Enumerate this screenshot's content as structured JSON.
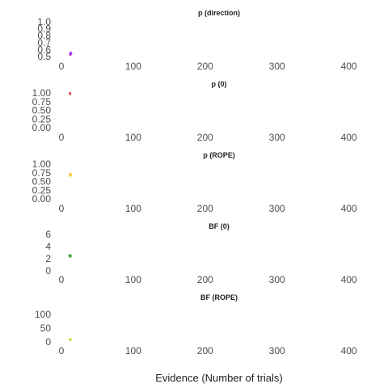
{
  "chart_data": [
    {
      "type": "scatter",
      "title": "p (direction)",
      "xlim": [
        0,
        450
      ],
      "ylim": [
        0.5,
        1.0
      ],
      "x_ticks": [
        "0",
        "100",
        "200",
        "300",
        "400"
      ],
      "y_ticks": [
        "1.0",
        "0.9",
        "0.8",
        "0.7",
        "0.6",
        "0.5"
      ],
      "color": "#a020f0",
      "points": [
        {
          "x": 12,
          "y": 0.54
        },
        {
          "x": 12,
          "y": 0.55
        },
        {
          "x": 13,
          "y": 0.53
        },
        {
          "x": 14,
          "y": 0.545
        },
        {
          "x": 12,
          "y": 0.52
        },
        {
          "x": 13,
          "y": 0.56
        }
      ]
    },
    {
      "type": "scatter",
      "title": "p (0)",
      "xlim": [
        0,
        450
      ],
      "ylim": [
        0,
        1.0
      ],
      "x_ticks": [
        "0",
        "100",
        "200",
        "300",
        "400"
      ],
      "y_ticks": [
        "1.00",
        "0.75",
        "0.50",
        "0.25",
        "0.00"
      ],
      "color": "#e8253a",
      "points": [
        {
          "x": 12,
          "y": 1.0
        },
        {
          "x": 12,
          "y": 0.99
        },
        {
          "x": 12,
          "y": 0.98
        },
        {
          "x": 12,
          "y": 0.97
        },
        {
          "x": 12,
          "y": 0.96
        }
      ]
    },
    {
      "type": "scatter",
      "title": "p (ROPE)",
      "xlim": [
        0,
        450
      ],
      "ylim": [
        0,
        1.0
      ],
      "x_ticks": [
        "0",
        "100",
        "200",
        "300",
        "400"
      ],
      "y_ticks": [
        "1.00",
        "0.75",
        "0.50",
        "0.25",
        "0.00"
      ],
      "color": "#f0c000",
      "points": [
        {
          "x": 12,
          "y": 0.72
        },
        {
          "x": 12,
          "y": 0.7
        },
        {
          "x": 13,
          "y": 0.68
        },
        {
          "x": 12,
          "y": 0.66
        },
        {
          "x": 13,
          "y": 0.71
        }
      ]
    },
    {
      "type": "scatter",
      "title": "BF (0)",
      "xlim": [
        0,
        450
      ],
      "ylim": [
        0,
        6
      ],
      "x_ticks": [
        "0",
        "100",
        "200",
        "300",
        "400"
      ],
      "y_ticks": [
        "6",
        "4",
        "2",
        "0"
      ],
      "color": "#2aa02a",
      "points": [
        {
          "x": 11,
          "y": 2.6
        },
        {
          "x": 12,
          "y": 2.5
        },
        {
          "x": 13,
          "y": 2.4
        },
        {
          "x": 12,
          "y": 2.3
        },
        {
          "x": 11,
          "y": 2.45
        },
        {
          "x": 13,
          "y": 2.55
        }
      ]
    },
    {
      "type": "scatter",
      "title": "BF (ROPE)",
      "xlim": [
        0,
        450
      ],
      "ylim": [
        0,
        100
      ],
      "x_ticks": [
        "0",
        "100",
        "200",
        "300",
        "400"
      ],
      "y_ticks": [
        "100",
        "50",
        "0"
      ],
      "color": "#c8d400",
      "points": [
        {
          "x": 12,
          "y": 10
        },
        {
          "x": 12,
          "y": 9
        },
        {
          "x": 13,
          "y": 8
        },
        {
          "x": 12,
          "y": 7
        },
        {
          "x": 13,
          "y": 9.5
        }
      ]
    }
  ],
  "xlabel": "Evidence (Number of trials)"
}
